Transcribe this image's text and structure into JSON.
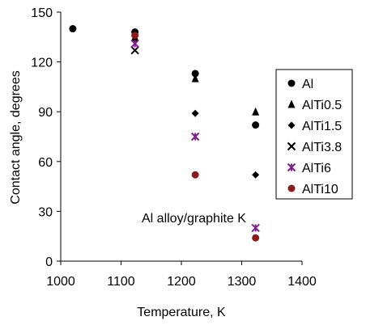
{
  "chart_data": {
    "type": "scatter",
    "title": "",
    "annotation": "Al alloy/graphite K",
    "xlabel": "Temperature, K",
    "ylabel": "Contact angle, degrees",
    "xlim": [
      1000,
      1400
    ],
    "ylim": [
      0,
      150
    ],
    "xticks": [
      1000,
      1100,
      1200,
      1300,
      1400
    ],
    "yticks": [
      0,
      30,
      60,
      90,
      120,
      150
    ],
    "legend_position": "right",
    "series": [
      {
        "name": "Al",
        "marker": "circle",
        "color": "#000000",
        "x": [
          1020,
          1123,
          1223,
          1323
        ],
        "y": [
          140,
          138,
          113,
          82
        ]
      },
      {
        "name": "AlTi0.5",
        "marker": "triangle",
        "color": "#000000",
        "x": [
          1123,
          1223,
          1323
        ],
        "y": [
          135,
          110,
          90
        ]
      },
      {
        "name": "AlTi1.5",
        "marker": "diamond",
        "color": "#000000",
        "x": [
          1123,
          1223,
          1323
        ],
        "y": [
          133,
          89,
          52
        ]
      },
      {
        "name": "AlTi3.8",
        "marker": "x",
        "color": "#000000",
        "x": [
          1123
        ],
        "y": [
          127
        ]
      },
      {
        "name": "AlTi6",
        "marker": "asterisk",
        "color": "#7f1f8f",
        "x": [
          1123,
          1223,
          1323
        ],
        "y": [
          131,
          75,
          20
        ]
      },
      {
        "name": "AlTi10",
        "marker": "circle",
        "color": "#8b1a1a",
        "x": [
          1123,
          1223,
          1323
        ],
        "y": [
          136,
          52,
          14
        ]
      }
    ]
  }
}
